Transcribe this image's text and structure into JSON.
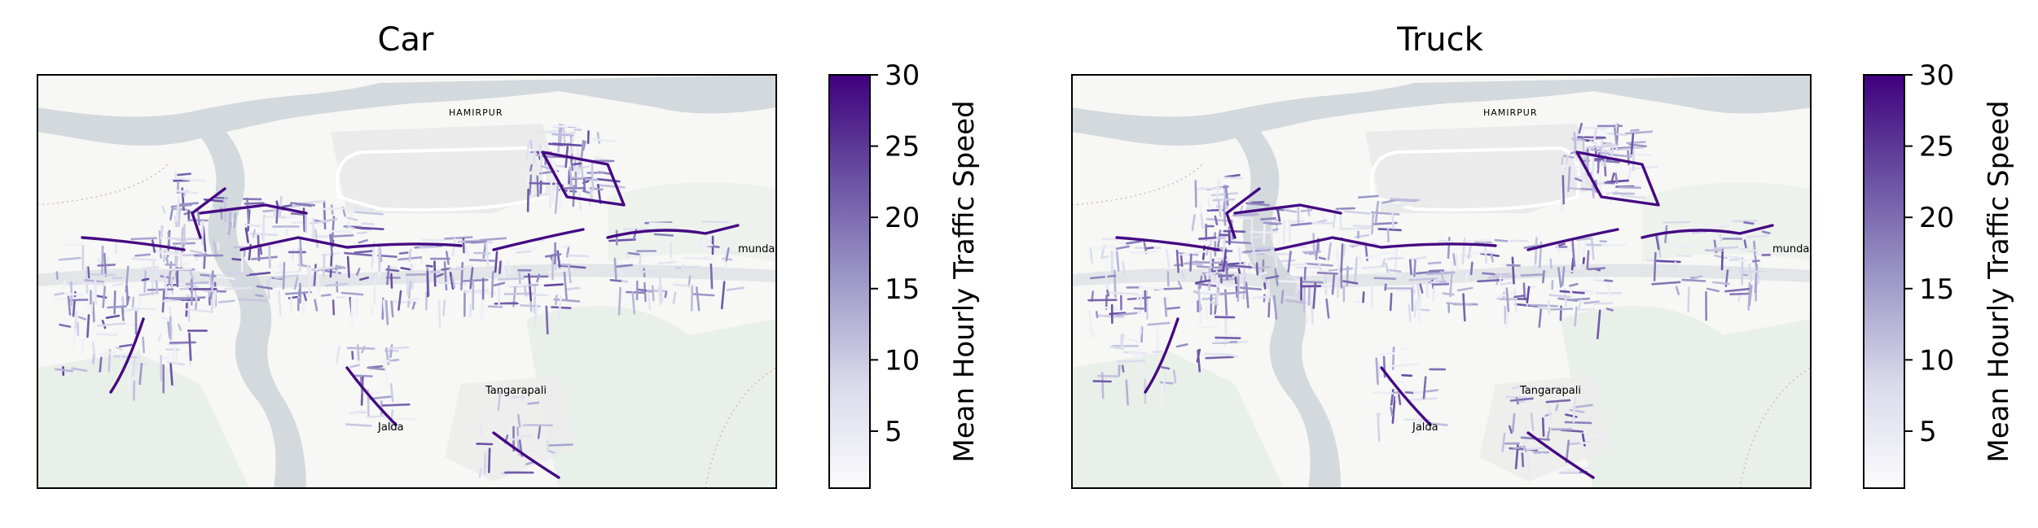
{
  "colors": {
    "land": "#f7f7f6",
    "green": "#e9efe9",
    "water": "#d3d9dc",
    "urban": "#ebebeb",
    "road": "#ffffff",
    "cmap_low": "#fcfbfd",
    "cmap_mid": "#9e9ac8",
    "cmap_high": "#3f007d"
  },
  "panels": [
    {
      "title": "Car",
      "colorbar": {
        "label": "Mean Hourly Traffic Speed",
        "ticks": [
          "30",
          "25",
          "20",
          "15",
          "10",
          "5"
        ],
        "min": 1,
        "max": 30
      },
      "place_labels": [
        "HAMIRPUR",
        "Tangarapali",
        "Jalda",
        "munda"
      ]
    },
    {
      "title": "Truck",
      "colorbar": {
        "label": "Mean Hourly Traffic Speed",
        "ticks": [
          "30",
          "25",
          "20",
          "15",
          "10",
          "5"
        ],
        "min": 1,
        "max": 30
      },
      "place_labels": [
        "HAMIRPUR",
        "Tangarapali",
        "Jalda",
        "munda"
      ]
    }
  ],
  "colorbar_tick_values": [
    30,
    25,
    20,
    15,
    10,
    5
  ]
}
